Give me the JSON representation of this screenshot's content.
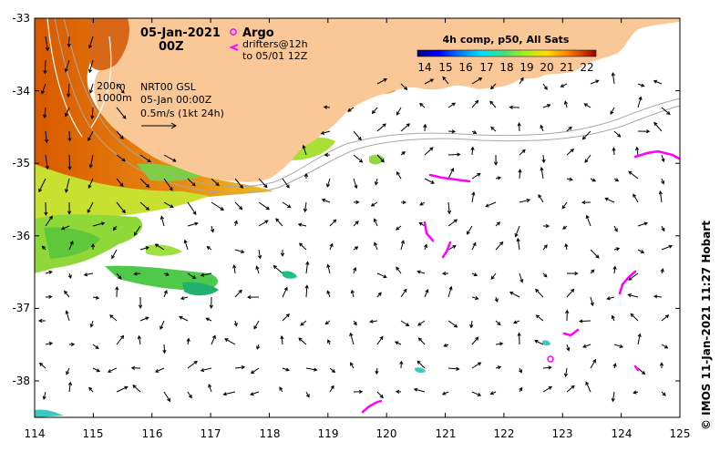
{
  "map": {
    "date_line1": "05-Jan-2021",
    "date_line2": "00Z",
    "argo_label": "Argo",
    "drifters_label_1": "drifters@12h",
    "drifters_label_2": "to 05/01 12Z",
    "depth_200": "200m",
    "depth_1000": "1000m",
    "nrt_line1": "NRT00 GSL",
    "nrt_line2": "05-Jan 00:00Z",
    "nrt_line3": "0.5m/s (1kt 24h)",
    "credit": "© IMOS 11-Jan-2021 11:27 Hobart",
    "colors": {
      "land": "#f9c896",
      "ocean": "#ffffff",
      "drifter": "#ff00ff",
      "isobath": "#a8a8a8"
    }
  },
  "colorbar": {
    "title": "4h comp, p50, All Sats",
    "ticks": [
      "14",
      "15",
      "16",
      "17",
      "18",
      "19",
      "20",
      "21",
      "22"
    ],
    "colors": [
      "#00007f",
      "#0000ff",
      "#0070ff",
      "#00d0ff",
      "#20e0a0",
      "#70e040",
      "#c0f020",
      "#ffe000",
      "#ff9000",
      "#ff3000",
      "#a00000"
    ]
  },
  "axes": {
    "x_ticks": [
      "114",
      "115",
      "116",
      "117",
      "118",
      "119",
      "120",
      "121",
      "122",
      "123",
      "124",
      "125"
    ],
    "y_ticks": [
      "-33",
      "-34",
      "-35",
      "-36",
      "-37",
      "-38"
    ]
  }
}
